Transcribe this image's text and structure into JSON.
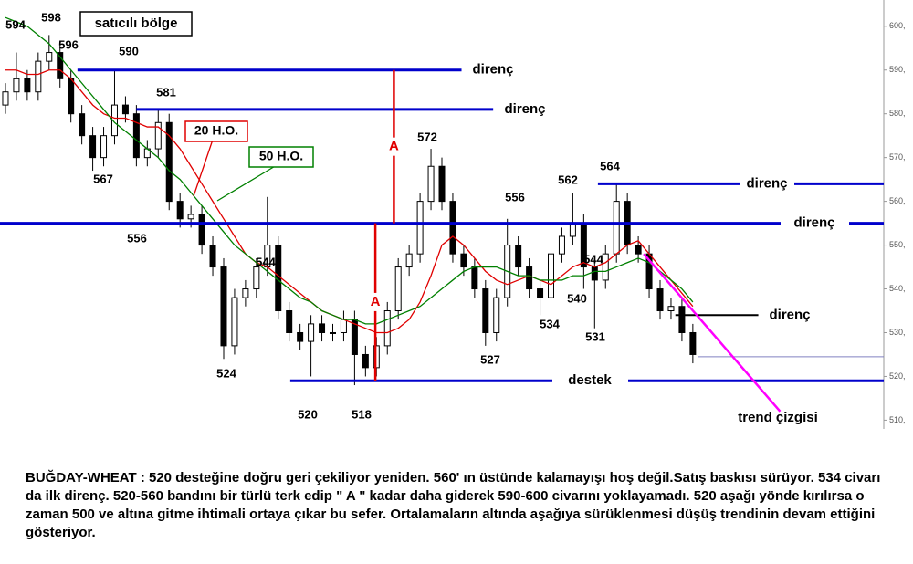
{
  "chart_data": {
    "type": "candlestick",
    "x": [
      0,
      1,
      2,
      3,
      4,
      5,
      6,
      7,
      8,
      9,
      10,
      11,
      12,
      13,
      14,
      15,
      16,
      17,
      18,
      19,
      20,
      21,
      22,
      23,
      24,
      25,
      26,
      27,
      28,
      29,
      30,
      31,
      32,
      33,
      34,
      35,
      36,
      37,
      38,
      39,
      40,
      41,
      42,
      43,
      44,
      45,
      46,
      47,
      48,
      49,
      50,
      51,
      52,
      53,
      54,
      55,
      56,
      57,
      58,
      59,
      60,
      61,
      62,
      63
    ],
    "xlim": [
      -0.5,
      80.5
    ],
    "ylim": [
      508,
      606
    ],
    "yticks": [
      {
        "value": 510,
        "label": "510,"
      },
      {
        "value": 520,
        "label": "520,"
      },
      {
        "value": 530,
        "label": "530,"
      },
      {
        "value": 540,
        "label": "540,"
      },
      {
        "value": 550,
        "label": "550,"
      },
      {
        "value": 560,
        "label": "560,"
      },
      {
        "value": 570,
        "label": "570,"
      },
      {
        "value": 580,
        "label": "580,"
      },
      {
        "value": 590,
        "label": "590,"
      },
      {
        "value": 600,
        "label": "600,"
      }
    ],
    "ohlc": {
      "open": [
        582,
        585,
        588,
        585,
        592,
        594,
        588,
        580,
        575,
        570,
        575,
        582,
        580,
        570,
        572,
        578,
        560,
        556,
        557,
        550,
        545,
        527,
        538,
        540,
        545,
        550,
        535,
        530,
        528,
        532,
        530,
        530,
        533,
        525,
        522,
        527,
        535,
        545,
        548,
        560,
        568,
        560,
        548,
        545,
        540,
        530,
        538,
        550,
        545,
        540,
        538,
        548,
        552,
        555,
        545,
        542,
        548,
        560,
        550,
        548,
        540,
        535,
        536,
        530
      ],
      "high": [
        587,
        594,
        590,
        594,
        598,
        596,
        590,
        582,
        577,
        577,
        590,
        584,
        582,
        574,
        581,
        580,
        562,
        559,
        559,
        552,
        547,
        540,
        542,
        547,
        561,
        552,
        537,
        532,
        534,
        534,
        532,
        535,
        535,
        527,
        529,
        537,
        547,
        550,
        562,
        572,
        570,
        562,
        550,
        547,
        542,
        540,
        556,
        552,
        547,
        542,
        550,
        554,
        562,
        557,
        547,
        550,
        564,
        562,
        552,
        550,
        542,
        538,
        538,
        532
      ],
      "low": [
        580,
        583,
        583,
        583,
        590,
        586,
        578,
        573,
        567,
        568,
        573,
        578,
        568,
        568,
        570,
        558,
        554,
        554,
        548,
        543,
        524,
        525,
        536,
        538,
        543,
        533,
        528,
        526,
        520,
        528,
        528,
        528,
        518,
        520,
        520,
        525,
        533,
        543,
        546,
        558,
        558,
        546,
        543,
        538,
        527,
        528,
        536,
        543,
        538,
        534,
        536,
        546,
        550,
        540,
        531,
        540,
        546,
        548,
        546,
        538,
        533,
        533,
        528,
        523
      ],
      "close": [
        585,
        588,
        585,
        592,
        594,
        588,
        580,
        575,
        570,
        575,
        582,
        580,
        570,
        572,
        578,
        560,
        556,
        557,
        550,
        545,
        527,
        538,
        540,
        545,
        550,
        535,
        530,
        528,
        532,
        530,
        530,
        533,
        525,
        522,
        527,
        535,
        545,
        548,
        560,
        568,
        560,
        548,
        545,
        540,
        530,
        538,
        550,
        545,
        540,
        538,
        548,
        552,
        555,
        545,
        542,
        548,
        560,
        550,
        548,
        540,
        535,
        536,
        530,
        525
      ]
    },
    "series": [
      {
        "name": "20 H.O.",
        "color": "#e00000",
        "values": [
          590,
          590,
          589,
          589,
          590,
          590,
          588,
          585,
          582,
          580,
          579,
          579,
          578,
          577,
          577,
          575,
          572,
          568,
          564,
          560,
          556,
          552,
          548,
          546,
          545,
          543,
          541,
          539,
          537,
          535,
          534,
          533,
          532,
          531,
          530,
          530,
          531,
          533,
          537,
          543,
          550,
          552,
          550,
          547,
          544,
          542,
          541,
          542,
          543,
          542,
          541,
          543,
          545,
          546,
          545,
          546,
          548,
          550,
          551,
          548,
          545,
          542,
          539,
          536
        ]
      },
      {
        "name": "50 H.O.",
        "color": "#008000",
        "values": [
          602,
          601,
          600,
          598,
          596,
          593,
          590,
          587,
          584,
          581,
          578,
          576,
          574,
          572,
          570,
          567,
          565,
          562,
          559,
          556,
          553,
          550,
          548,
          546,
          544,
          542,
          540,
          538,
          537,
          535,
          534,
          533,
          533,
          532,
          532,
          533,
          534,
          535,
          536,
          538,
          540,
          542,
          544,
          545,
          545,
          545,
          544,
          543,
          543,
          542,
          542,
          542,
          543,
          543,
          544,
          544,
          545,
          546,
          547,
          546,
          544,
          542,
          540,
          537
        ]
      }
    ],
    "levels": [
      {
        "label": "direnç",
        "value": 590,
        "x": [
          6.6,
          41.8
        ],
        "color": "#0000cc"
      },
      {
        "label": "direnç",
        "value": 581,
        "x": [
          12,
          44.7
        ],
        "color": "#0000cc"
      },
      {
        "label": "direnç",
        "value": 564,
        "x": [
          54.3,
          80.5
        ],
        "color": "#0000cc"
      },
      {
        "label": "direnç",
        "value": 555,
        "x": [
          -0.5,
          80.5
        ],
        "color": "#0000cc"
      },
      {
        "label": "destek",
        "value": 519,
        "x": [
          26.1,
          80.5
        ],
        "color": "#0000cc"
      },
      {
        "label": "direnç",
        "value": 534,
        "x": [
          61.4,
          69
        ],
        "color": "#000000"
      }
    ],
    "last_price": {
      "value": 524.5,
      "x": [
        63.5,
        80.5
      ],
      "color": "#8080c0"
    },
    "trendline": {
      "label": "trend çizgisi",
      "x": [
        58.5,
        71
      ],
      "values": [
        548,
        512
      ],
      "color": "#ff00ff"
    },
    "measures": [
      {
        "label": "A",
        "x": 35.6,
        "values": [
          555,
          590
        ],
        "color": "#e00000"
      },
      {
        "label": "A",
        "x": 33.9,
        "values": [
          519,
          555
        ],
        "color": "#e00000"
      }
    ],
    "price_labels": [
      594,
      598,
      596,
      590,
      581,
      567,
      556,
      524,
      544,
      520,
      518,
      572,
      556,
      527,
      562,
      534,
      564,
      544,
      540,
      531
    ],
    "box_label": "satıcılı bölge",
    "caption": "BUĞDAY-WHEAT : 520 desteğine doğru geri çekiliyor yeniden. 560' ın üstünde kalamayışı hoş değil.Satış baskısı sürüyor. 534 civarı da ilk direnç. 520-560 bandını bir türlü terk edip \" A \" kadar daha giderek 590-600 civarını yoklayamadı. 520 aşağı yönde kırılırsa o zaman 500 ve altına gitme ihtimali ortaya çıkar bu sefer. Ortalamaların altında aşağıya sürüklenmesi düşüş trendinin devam ettiğini gösteriyor."
  }
}
